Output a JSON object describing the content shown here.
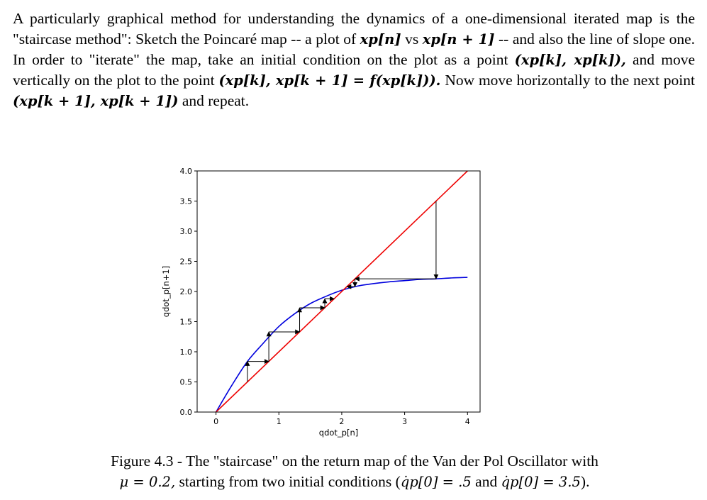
{
  "paragraph": {
    "s1": "A particularly graphical method for understanding the dynamics of a one-dimensional iterated map is the \"staircase method\": Sketch the Poincaré map -- a plot of ",
    "m1": "xp[n]",
    "s2": " vs ",
    "m2": "xp[n + 1]",
    "s3": " -- and also the line of slope one. In order to \"iterate\" the map, take an initial condition on the plot as a point ",
    "m3": "(xp[k], xp[k]),",
    "s4": " and move vertically on the plot to the point ",
    "m4": "(xp[k], xp[k + 1] = f(xp[k])).",
    "s5": " Now move horizontally to the next point ",
    "m5": "(xp[k + 1], xp[k + 1])",
    "s6": " and repeat."
  },
  "chart_data": {
    "type": "line",
    "xlabel": "qdot_p[n]",
    "ylabel": "qdot_p[n+1]",
    "xlim": [
      -0.3,
      4.2
    ],
    "ylim": [
      0,
      4.0
    ],
    "xticks": [
      0,
      1,
      2,
      3,
      4
    ],
    "yticks": [
      0.0,
      0.5,
      1.0,
      1.5,
      2.0,
      2.5,
      3.0,
      3.5,
      4.0
    ],
    "grid": false,
    "series": [
      {
        "color": "#0000dd",
        "x": [
          0,
          0.25,
          0.5,
          0.75,
          1.0,
          1.25,
          1.5,
          1.75,
          2.0,
          2.25,
          2.5,
          2.75,
          3.0,
          3.25,
          3.5,
          3.75,
          4.0
        ],
        "y": [
          0,
          0.44,
          0.84,
          1.14,
          1.42,
          1.63,
          1.8,
          1.92,
          2.02,
          2.09,
          2.13,
          2.16,
          2.18,
          2.2,
          2.21,
          2.225,
          2.235
        ]
      },
      {
        "color": "#ee0000",
        "x": [
          0,
          4
        ],
        "y": [
          0,
          4
        ]
      }
    ],
    "staircases": [
      {
        "color": "#000000",
        "start": 0.5,
        "points": [
          [
            0.5,
            0.5
          ],
          [
            0.5,
            0.84
          ],
          [
            0.84,
            0.84
          ],
          [
            0.84,
            1.33
          ],
          [
            1.33,
            1.33
          ],
          [
            1.33,
            1.73
          ],
          [
            1.73,
            1.73
          ],
          [
            1.73,
            1.88
          ],
          [
            1.88,
            1.88
          ]
        ]
      },
      {
        "color": "#000000",
        "start": 3.5,
        "points": [
          [
            3.5,
            3.5
          ],
          [
            3.5,
            2.21
          ],
          [
            2.21,
            2.21
          ],
          [
            2.21,
            2.08
          ],
          [
            2.08,
            2.08
          ]
        ]
      }
    ]
  },
  "caption": {
    "c1": "Figure 4.3 - The \"staircase\" on the return map of the Van der Pol Oscillator with",
    "m1": "μ = 0.2,",
    "c2": " starting from two initial conditions (",
    "m2": "q̇p[0] = .5",
    "c3": " and ",
    "m3": "q̇p[0] = 3.5",
    "c4": ")."
  }
}
